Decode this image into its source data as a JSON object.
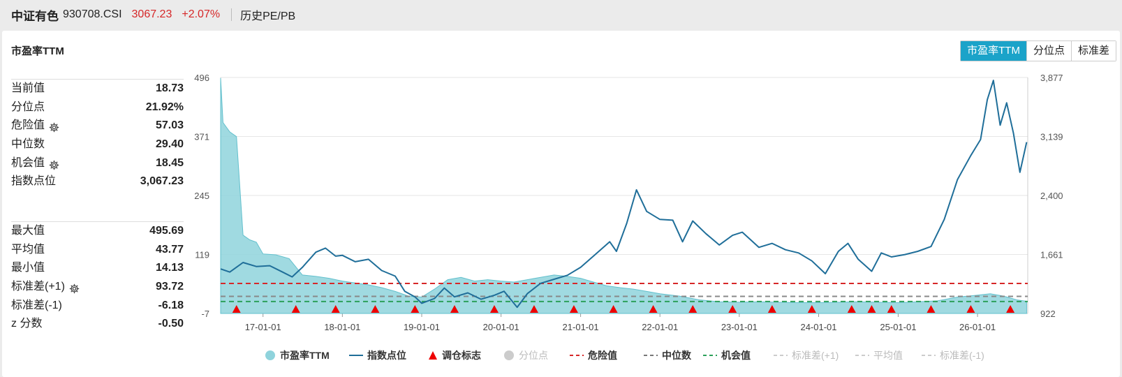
{
  "header": {
    "name": "中证有色",
    "code": "930708.CSI",
    "price": "3067.23",
    "change": "+2.07%",
    "history_label": "历史PE/PB"
  },
  "panel": {
    "title": "市盈率TTM",
    "tabs": [
      {
        "label": "市盈率TTM",
        "active": true
      },
      {
        "label": "分位点",
        "active": false
      },
      {
        "label": "标准差",
        "active": false
      }
    ]
  },
  "stats_top": [
    {
      "label": "当前值",
      "value": "18.73",
      "gear": false
    },
    {
      "label": "分位点",
      "value": "21.92%",
      "gear": false
    },
    {
      "label": "危险值",
      "value": "57.03",
      "gear": true
    },
    {
      "label": "中位数",
      "value": "29.40",
      "gear": false
    },
    {
      "label": "机会值",
      "value": "18.45",
      "gear": true
    },
    {
      "label": "指数点位",
      "value": "3,067.23",
      "gear": false
    }
  ],
  "stats_bottom": [
    {
      "label": "最大值",
      "value": "495.69",
      "gear": false
    },
    {
      "label": "平均值",
      "value": "43.77",
      "gear": false
    },
    {
      "label": "最小值",
      "value": "14.13",
      "gear": false
    },
    {
      "label": "标准差(+1)",
      "value": "93.72",
      "gear": true
    },
    {
      "label": "标准差(-1)",
      "value": "-6.18",
      "gear": false
    },
    {
      "label": "z 分数",
      "value": "-0.50",
      "gear": false
    }
  ],
  "colors": {
    "pe_fill": "#8fd3dc",
    "pe_line": "#62c0cd",
    "index_line": "#1f6e99",
    "danger": "#d62728",
    "median": "#888888",
    "opportunity": "#2ca05a",
    "marker": "#ee0000",
    "accent": "#1ba3c9"
  },
  "chart_data": {
    "type": "line",
    "left_axis": {
      "ticks": [
        "496",
        "371",
        "245",
        "119",
        "-7"
      ],
      "min": -7,
      "max": 496
    },
    "right_axis": {
      "ticks": [
        "3,877",
        "3,139",
        "2,400",
        "1,661",
        "922"
      ],
      "min": 922,
      "max": 3877
    },
    "x_ticks": [
      "17-01-01",
      "18-01-01",
      "19-01-01",
      "20-01-01",
      "21-01-01",
      "22-01-01",
      "23-01-01",
      "24-01-01",
      "25-01-01",
      "26-01-01"
    ],
    "reference_lines": {
      "danger": 57.03,
      "median": 29.4,
      "opportunity": 18.45
    },
    "series": [
      {
        "name": "市盈率TTM",
        "axis": "left",
        "points": [
          [
            "2016-06-20",
            495
          ],
          [
            "2016-07-01",
            400
          ],
          [
            "2016-08-01",
            380
          ],
          [
            "2016-09-01",
            370
          ],
          [
            "2016-10-01",
            160
          ],
          [
            "2016-11-01",
            150
          ],
          [
            "2016-12-01",
            145
          ],
          [
            "2017-01-01",
            120
          ],
          [
            "2017-03-01",
            118
          ],
          [
            "2017-05-01",
            110
          ],
          [
            "2017-07-01",
            75
          ],
          [
            "2017-09-01",
            72
          ],
          [
            "2017-11-01",
            68
          ],
          [
            "2018-01-01",
            62
          ],
          [
            "2018-03-01",
            58
          ],
          [
            "2018-05-01",
            54
          ],
          [
            "2018-07-01",
            48
          ],
          [
            "2018-09-01",
            40
          ],
          [
            "2018-11-01",
            30
          ],
          [
            "2019-01-01",
            28
          ],
          [
            "2019-03-01",
            45
          ],
          [
            "2019-05-01",
            65
          ],
          [
            "2019-07-01",
            70
          ],
          [
            "2019-09-01",
            62
          ],
          [
            "2019-11-01",
            65
          ],
          [
            "2020-01-01",
            62
          ],
          [
            "2020-03-01",
            60
          ],
          [
            "2020-05-01",
            65
          ],
          [
            "2020-07-01",
            70
          ],
          [
            "2020-09-01",
            75
          ],
          [
            "2020-11-01",
            72
          ],
          [
            "2021-01-01",
            68
          ],
          [
            "2021-03-01",
            60
          ],
          [
            "2021-05-01",
            52
          ],
          [
            "2021-07-01",
            48
          ],
          [
            "2021-09-01",
            45
          ],
          [
            "2021-11-01",
            40
          ],
          [
            "2022-01-01",
            35
          ],
          [
            "2022-04-01",
            30
          ],
          [
            "2022-07-01",
            22
          ],
          [
            "2022-10-01",
            18
          ],
          [
            "2023-01-01",
            17
          ],
          [
            "2023-04-01",
            18
          ],
          [
            "2023-07-01",
            17
          ],
          [
            "2023-10-01",
            16
          ],
          [
            "2024-01-01",
            16
          ],
          [
            "2024-04-01",
            17
          ],
          [
            "2024-07-01",
            18
          ],
          [
            "2024-10-01",
            17
          ],
          [
            "2025-01-01",
            16
          ],
          [
            "2025-04-01",
            18
          ],
          [
            "2025-07-01",
            20
          ],
          [
            "2025-10-01",
            28
          ],
          [
            "2026-01-01",
            32
          ],
          [
            "2026-03-01",
            35
          ],
          [
            "2026-05-01",
            30
          ],
          [
            "2026-07-01",
            22
          ],
          [
            "2026-08-15",
            19
          ]
        ]
      },
      {
        "name": "指数点位",
        "axis": "right",
        "points": [
          [
            "2016-06-20",
            1480
          ],
          [
            "2016-08-01",
            1440
          ],
          [
            "2016-10-01",
            1560
          ],
          [
            "2016-12-01",
            1510
          ],
          [
            "2017-02-01",
            1520
          ],
          [
            "2017-04-01",
            1440
          ],
          [
            "2017-05-15",
            1380
          ],
          [
            "2017-07-01",
            1500
          ],
          [
            "2017-09-01",
            1690
          ],
          [
            "2017-10-15",
            1740
          ],
          [
            "2017-12-01",
            1640
          ],
          [
            "2018-01-01",
            1650
          ],
          [
            "2018-03-01",
            1570
          ],
          [
            "2018-05-01",
            1600
          ],
          [
            "2018-07-01",
            1460
          ],
          [
            "2018-09-01",
            1390
          ],
          [
            "2018-10-15",
            1200
          ],
          [
            "2018-12-01",
            1130
          ],
          [
            "2019-01-01",
            1050
          ],
          [
            "2019-03-01",
            1110
          ],
          [
            "2019-04-15",
            1240
          ],
          [
            "2019-06-01",
            1130
          ],
          [
            "2019-08-01",
            1180
          ],
          [
            "2019-10-01",
            1100
          ],
          [
            "2019-12-01",
            1150
          ],
          [
            "2020-01-15",
            1200
          ],
          [
            "2020-03-15",
            1000
          ],
          [
            "2020-05-01",
            1170
          ],
          [
            "2020-07-01",
            1300
          ],
          [
            "2020-09-01",
            1350
          ],
          [
            "2020-11-01",
            1400
          ],
          [
            "2021-01-01",
            1500
          ],
          [
            "2021-03-01",
            1640
          ],
          [
            "2021-05-15",
            1820
          ],
          [
            "2021-06-15",
            1700
          ],
          [
            "2021-08-01",
            2050
          ],
          [
            "2021-09-15",
            2470
          ],
          [
            "2021-11-01",
            2200
          ],
          [
            "2022-01-01",
            2100
          ],
          [
            "2022-03-01",
            2090
          ],
          [
            "2022-04-15",
            1820
          ],
          [
            "2022-06-01",
            2080
          ],
          [
            "2022-08-01",
            1920
          ],
          [
            "2022-10-01",
            1780
          ],
          [
            "2022-12-01",
            1900
          ],
          [
            "2023-01-15",
            1940
          ],
          [
            "2023-04-01",
            1750
          ],
          [
            "2023-06-01",
            1800
          ],
          [
            "2023-08-01",
            1720
          ],
          [
            "2023-10-01",
            1680
          ],
          [
            "2023-12-01",
            1580
          ],
          [
            "2024-02-01",
            1420
          ],
          [
            "2024-04-01",
            1700
          ],
          [
            "2024-05-15",
            1800
          ],
          [
            "2024-07-01",
            1600
          ],
          [
            "2024-09-01",
            1450
          ],
          [
            "2024-10-15",
            1680
          ],
          [
            "2024-12-01",
            1630
          ],
          [
            "2025-02-01",
            1660
          ],
          [
            "2025-04-01",
            1700
          ],
          [
            "2025-06-01",
            1760
          ],
          [
            "2025-08-01",
            2100
          ],
          [
            "2025-10-01",
            2600
          ],
          [
            "2025-12-01",
            2900
          ],
          [
            "2026-01-15",
            3100
          ],
          [
            "2026-02-15",
            3600
          ],
          [
            "2026-03-15",
            3840
          ],
          [
            "2026-04-15",
            3280
          ],
          [
            "2026-05-15",
            3560
          ],
          [
            "2026-06-15",
            3180
          ],
          [
            "2026-07-15",
            2690
          ],
          [
            "2026-08-15",
            3067
          ]
        ]
      }
    ],
    "rebalance_markers": [
      "2016-09-01",
      "2017-06-01",
      "2017-12-01",
      "2018-06-01",
      "2018-12-01",
      "2019-06-01",
      "2019-12-01",
      "2020-06-01",
      "2020-12-01",
      "2021-06-01",
      "2021-12-01",
      "2022-06-01",
      "2022-12-01",
      "2023-06-01",
      "2023-12-01",
      "2024-06-01",
      "2024-09-01",
      "2024-12-01",
      "2025-06-01",
      "2025-12-01",
      "2026-06-01"
    ],
    "legend": [
      {
        "label": "市盈率TTM",
        "kind": "dot",
        "color": "#8fd3dc",
        "active": true
      },
      {
        "label": "指数点位",
        "kind": "line",
        "color": "#1f6e99",
        "active": true
      },
      {
        "label": "调仓标志",
        "kind": "triangle",
        "color": "#ee0000",
        "active": true
      },
      {
        "label": "分位点",
        "kind": "dot",
        "color": "#cccccc",
        "active": false
      },
      {
        "label": "危险值",
        "kind": "dash",
        "color": "#d62728",
        "active": true
      },
      {
        "label": "中位数",
        "kind": "dash",
        "color": "#777777",
        "active": true
      },
      {
        "label": "机会值",
        "kind": "dash",
        "color": "#2ca05a",
        "active": true
      },
      {
        "label": "标准差(+1)",
        "kind": "dash",
        "color": "#cccccc",
        "active": false
      },
      {
        "label": "平均值",
        "kind": "dash",
        "color": "#cccccc",
        "active": false
      },
      {
        "label": "标准差(-1)",
        "kind": "dash",
        "color": "#cccccc",
        "active": false
      }
    ]
  }
}
